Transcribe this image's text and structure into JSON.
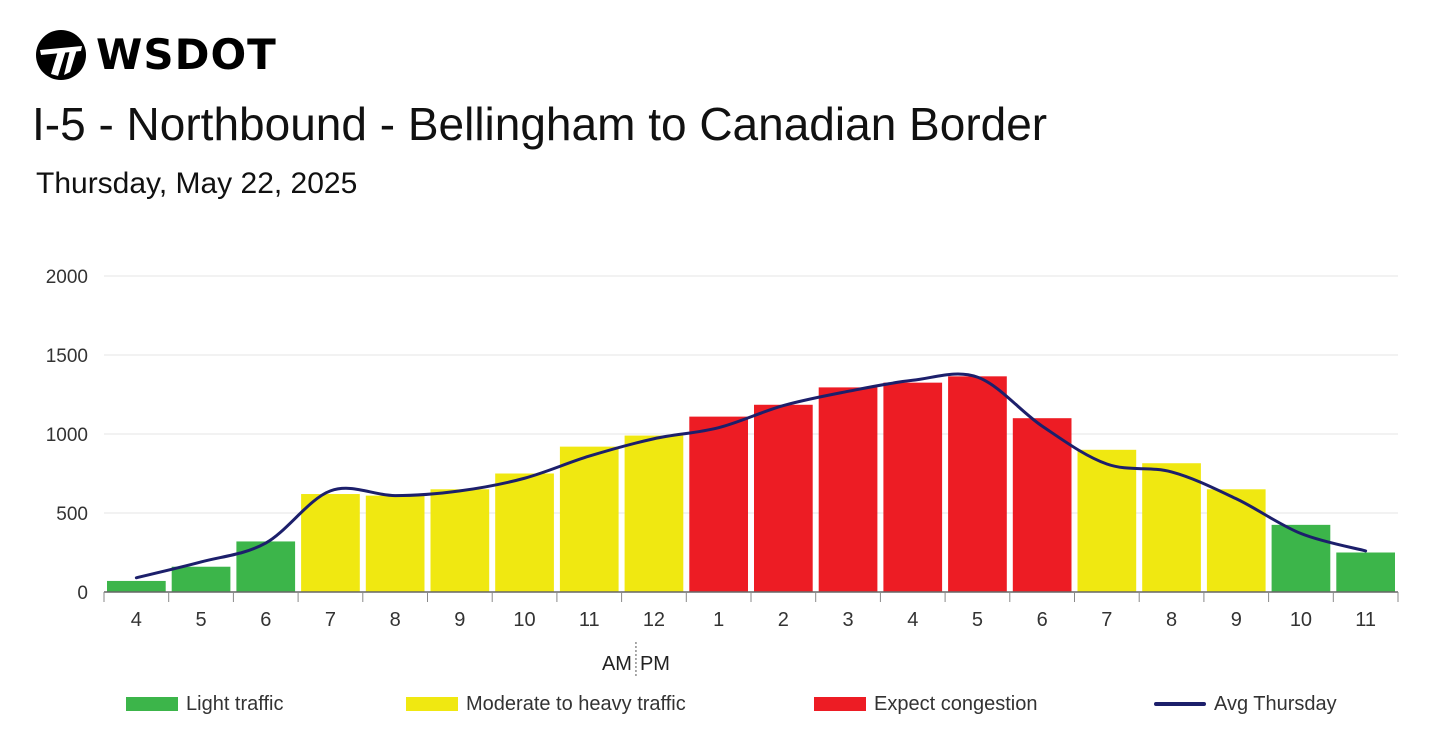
{
  "logo": {
    "text": "WSDOT",
    "icon": "wsdot-swoosh-logo"
  },
  "title": "I-5 - Northbound - Bellingham to Canadian Border",
  "subtitle": "Thursday, May 22, 2025",
  "colors": {
    "light": "#3cb54a",
    "moderate": "#f0e811",
    "congestion": "#ed1c24",
    "avg_line": "#1c1f6b",
    "grid": "#e6e6e6"
  },
  "legend": [
    {
      "key": "light",
      "label": "Light traffic"
    },
    {
      "key": "moderate",
      "label": "Moderate to heavy traffic"
    },
    {
      "key": "congestion",
      "label": "Expect congestion"
    },
    {
      "key": "avg",
      "label": "Avg Thursday"
    }
  ],
  "chart_data": {
    "type": "bar",
    "title": "I-5 - Northbound - Bellingham to Canadian Border",
    "subtitle": "Thursday, May 22, 2025",
    "xlabel": "",
    "ylabel": "",
    "ylim": [
      0,
      2000
    ],
    "yticks": [
      0,
      500,
      1000,
      1500,
      2000
    ],
    "grid": true,
    "legend_position": "bottom",
    "am_pm_label": {
      "am": "AM",
      "pm": "PM"
    },
    "categories": [
      "4",
      "5",
      "6",
      "7",
      "8",
      "9",
      "10",
      "11",
      "12",
      "1",
      "2",
      "3",
      "4",
      "5",
      "6",
      "7",
      "8",
      "9",
      "10",
      "11"
    ],
    "values": [
      70,
      160,
      320,
      620,
      610,
      650,
      750,
      920,
      990,
      1110,
      1185,
      1295,
      1325,
      1365,
      1100,
      900,
      815,
      650,
      425,
      250
    ],
    "levels": [
      "light",
      "light",
      "light",
      "moderate",
      "moderate",
      "moderate",
      "moderate",
      "moderate",
      "moderate",
      "congestion",
      "congestion",
      "congestion",
      "congestion",
      "congestion",
      "congestion",
      "moderate",
      "moderate",
      "moderate",
      "light",
      "light"
    ],
    "series": [
      {
        "name": "Avg Thursday",
        "type": "line",
        "values": [
          90,
          190,
          310,
          640,
          610,
          640,
          720,
          860,
          970,
          1040,
          1180,
          1270,
          1340,
          1360,
          1050,
          810,
          760,
          590,
          370,
          260
        ]
      }
    ]
  }
}
